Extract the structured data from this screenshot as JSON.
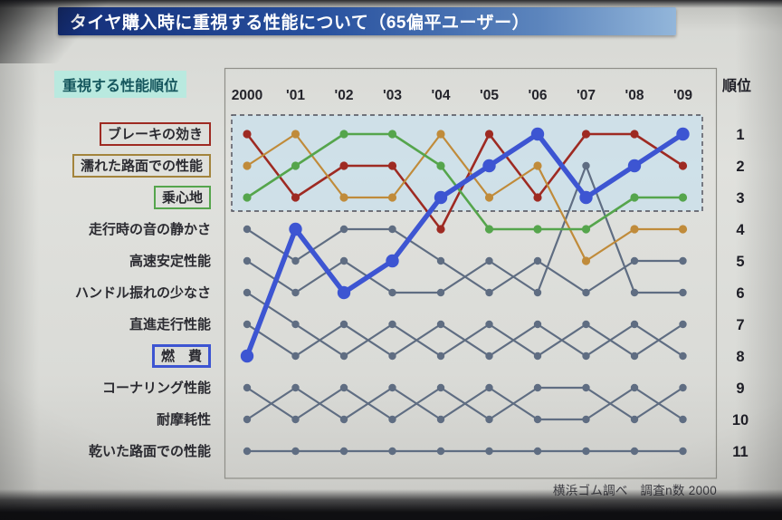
{
  "title": "タイヤ購入時に重視する性能について（65偏平ユーザー）",
  "legend": {
    "header": "重視する性能順位",
    "items": [
      {
        "label": "ブレーキの効き",
        "box_color": "#9e2a22"
      },
      {
        "label": "濡れた路面での性能",
        "box_color": "#a3843c"
      },
      {
        "label": "乗心地",
        "box_color": "#55a54c"
      },
      {
        "label": "走行時の音の静かさ",
        "box_color": null
      },
      {
        "label": "高速安定性能",
        "box_color": null
      },
      {
        "label": "ハンドル振れの少なさ",
        "box_color": null
      },
      {
        "label": "直進走行性能",
        "box_color": null
      },
      {
        "label": "燃　費",
        "box_color": "#3d55d2",
        "box_weight": 3
      },
      {
        "label": "コーナリング性能",
        "box_color": null
      },
      {
        "label": "耐摩耗性",
        "box_color": null
      },
      {
        "label": "乾いた路面での性能",
        "box_color": null
      }
    ]
  },
  "chart_data": {
    "type": "line",
    "subtype": "bump-rank-chart",
    "title": "タイヤ購入時に重視する性能について（65偏平ユーザー）",
    "x": [
      "2000",
      "'01",
      "'02",
      "'03",
      "'04",
      "'05",
      "'06",
      "'07",
      "'08",
      "'09"
    ],
    "rank_axis_label": "順位",
    "rank_labels": [
      "1",
      "2",
      "3",
      "4",
      "5",
      "6",
      "7",
      "8",
      "9",
      "10",
      "11"
    ],
    "rank_range": [
      1,
      11
    ],
    "y_inverted": true,
    "grid": false,
    "highlight_band_ranks": [
      1,
      3
    ],
    "series": [
      {
        "name": "ブレーキの効き",
        "color": "#9e2a22",
        "width": 2.6,
        "highlight": true,
        "ranks": [
          1,
          3,
          2,
          2,
          4,
          1,
          3,
          1,
          1,
          2
        ]
      },
      {
        "name": "濡れた路面での性能",
        "color": "#c08b3a",
        "width": 2.2,
        "highlight": true,
        "ranks": [
          2,
          1,
          3,
          3,
          1,
          3,
          2,
          5,
          4,
          4
        ]
      },
      {
        "name": "乗心地",
        "color": "#55a54c",
        "width": 2.6,
        "highlight": true,
        "ranks": [
          3,
          2,
          1,
          1,
          2,
          4,
          4,
          4,
          3,
          3
        ]
      },
      {
        "name": "走行時の音の静かさ",
        "color": "#5f6d82",
        "width": 2.2,
        "highlight": false,
        "ranks": [
          4,
          5,
          4,
          4,
          5,
          6,
          5,
          6,
          5,
          5
        ]
      },
      {
        "name": "高速安定性能",
        "color": "#5f6d82",
        "width": 2.2,
        "highlight": false,
        "ranks": [
          5,
          6,
          5,
          6,
          6,
          5,
          6,
          2,
          6,
          6
        ]
      },
      {
        "name": "ハンドル振れの少なさ",
        "color": "#5f6d82",
        "width": 2.2,
        "highlight": false,
        "ranks": [
          6,
          7,
          8,
          7,
          8,
          7,
          8,
          7,
          8,
          7
        ]
      },
      {
        "name": "直進走行性能",
        "color": "#5f6d82",
        "width": 2.2,
        "highlight": false,
        "ranks": [
          7,
          8,
          7,
          8,
          7,
          8,
          7,
          8,
          7,
          8
        ]
      },
      {
        "name": "燃費",
        "color": "#3d55d2",
        "width": 5.5,
        "highlight": true,
        "ranks": [
          8,
          4,
          6,
          5,
          3,
          2,
          1,
          3,
          2,
          1
        ]
      },
      {
        "name": "コーナリング性能",
        "color": "#5f6d82",
        "width": 2.2,
        "highlight": false,
        "ranks": [
          9,
          10,
          9,
          10,
          9,
          10,
          9,
          9,
          10,
          9
        ]
      },
      {
        "name": "耐摩耗性",
        "color": "#5f6d82",
        "width": 2.2,
        "highlight": false,
        "ranks": [
          10,
          9,
          10,
          9,
          10,
          9,
          10,
          10,
          9,
          10
        ]
      },
      {
        "name": "乾いた路面での性能",
        "color": "#5f6d82",
        "width": 2.2,
        "highlight": false,
        "ranks": [
          11,
          11,
          11,
          11,
          11,
          11,
          11,
          11,
          11,
          11
        ]
      }
    ]
  },
  "footer": {
    "source": "横浜ゴム調べ　調査n数 2000"
  }
}
